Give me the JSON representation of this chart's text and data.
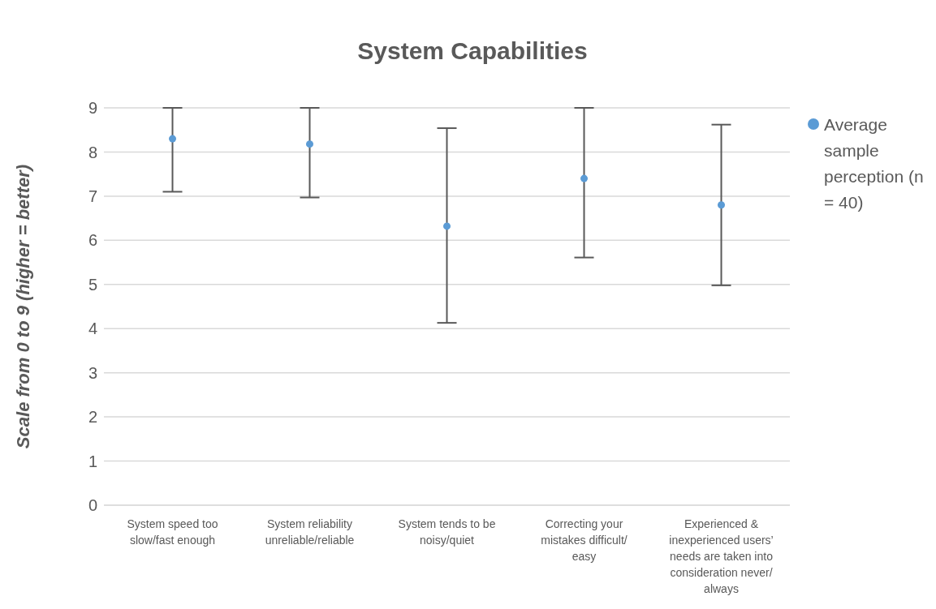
{
  "chart_data": {
    "type": "scatter",
    "title": "System Capabilities",
    "ylabel": "Scale from 0 to 9 (higher = better)",
    "categories": [
      "System speed too slow/fast enough",
      "System reliability unreliable/reliable",
      "System tends to be noisy/quiet",
      "Correcting your mistakes difficult/ easy",
      "Experienced & inexperienced users’ needs are taken into consideration never/ always"
    ],
    "series": [
      {
        "name": "Average sample perception (n = 40)",
        "color": "#5b9bd5",
        "values": [
          8.3,
          8.18,
          6.32,
          7.4,
          6.8
        ],
        "errors": [
          [
            7.1,
            9.0
          ],
          [
            6.97,
            9.0
          ],
          [
            4.13,
            8.54
          ],
          [
            5.61,
            9.0
          ],
          [
            4.98,
            8.62
          ]
        ]
      }
    ],
    "ylim": [
      0,
      9
    ],
    "yticks": [
      0,
      1,
      2,
      3,
      4,
      5,
      6,
      7,
      8,
      9
    ],
    "grid": "y",
    "legend": "right",
    "marker": "circle"
  }
}
